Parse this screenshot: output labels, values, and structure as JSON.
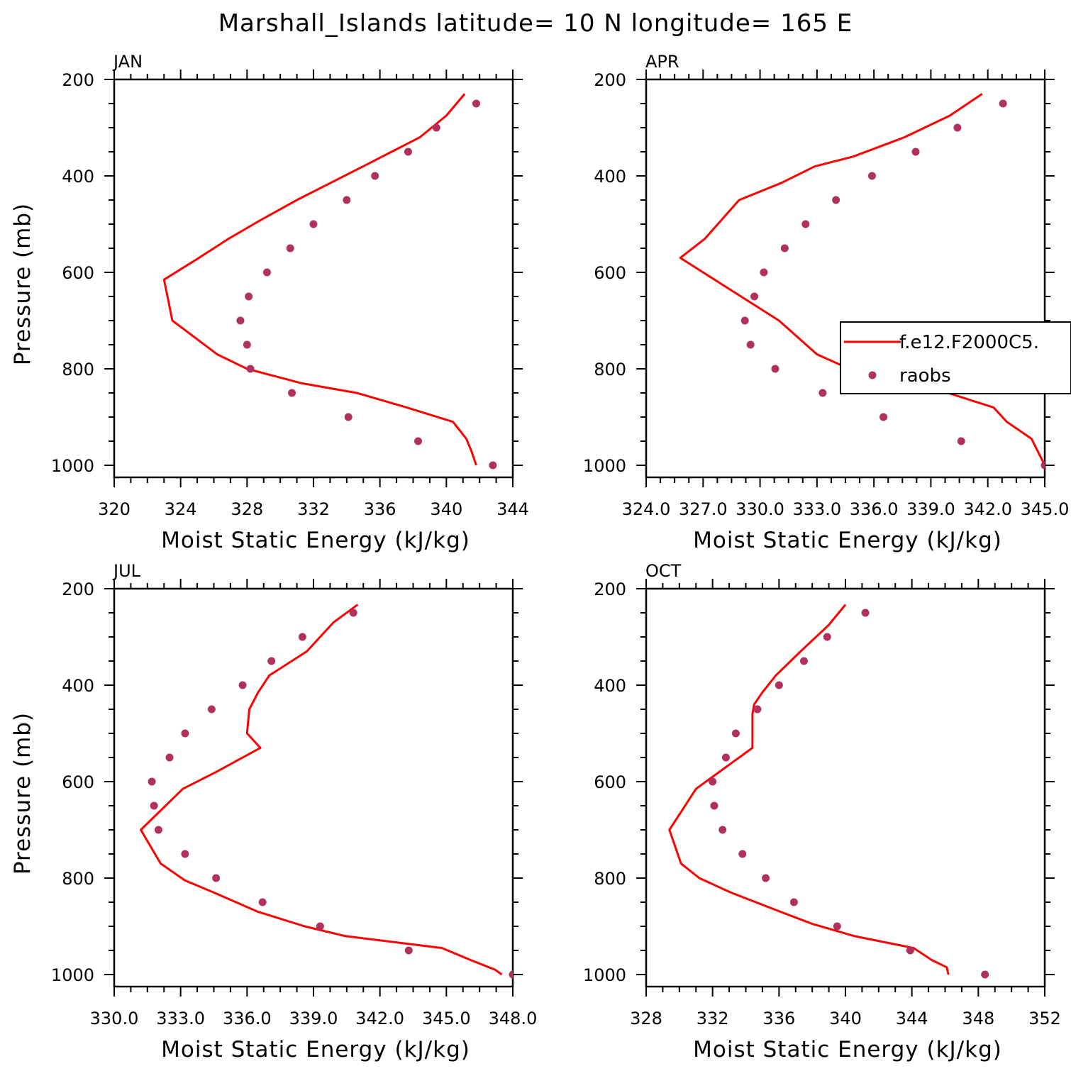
{
  "title": "Marshall_Islands   latitude= 10 N longitude= 165 E",
  "colors": {
    "model_line": "#ff0000",
    "obs_marker": "#b03060"
  },
  "chart_data": [
    {
      "type": "line",
      "panel_title": "JAN",
      "xlabel": "Moist Static Energy (kJ/kg)",
      "ylabel": "Pressure (mb)",
      "xlim": [
        320,
        344
      ],
      "ylim": [
        1025,
        200
      ],
      "xticks": [
        "320",
        "324",
        "328",
        "332",
        "336",
        "340",
        "344"
      ],
      "yticks": [
        "200",
        "400",
        "600",
        "800",
        "1000"
      ],
      "series": [
        {
          "name": "f.e12.F2000C5.",
          "kind": "line",
          "x": [
            341.1,
            340.0,
            338.4,
            336.7,
            335.0,
            333.0,
            331.0,
            328.9,
            326.9,
            325.1,
            323.0,
            323.5,
            326.2,
            328.0,
            331.3,
            334.6,
            337.6,
            340.4,
            341.2,
            341.5,
            341.8
          ],
          "y": [
            230,
            275,
            320,
            350,
            380,
            415,
            450,
            490,
            530,
            570,
            615,
            700,
            770,
            800,
            830,
            850,
            880,
            910,
            945,
            970,
            1000
          ]
        },
        {
          "name": "raobs",
          "kind": "scatter",
          "x": [
            341.8,
            339.4,
            337.7,
            335.7,
            334.0,
            332.0,
            330.6,
            329.2,
            328.1,
            327.6,
            328.0,
            328.2,
            330.7,
            334.1,
            338.3,
            342.8
          ],
          "y": [
            250,
            300,
            350,
            400,
            450,
            500,
            550,
            600,
            650,
            700,
            750,
            800,
            850,
            900,
            950,
            1000
          ]
        }
      ]
    },
    {
      "type": "line",
      "panel_title": "APR",
      "xlabel": "Moist Static Energy (kJ/kg)",
      "ylabel": "",
      "xlim": [
        324.0,
        345.0
      ],
      "ylim": [
        1025,
        200
      ],
      "xticks": [
        "324.0",
        "327.0",
        "330.0",
        "333.0",
        "336.0",
        "339.0",
        "342.0",
        "345.0"
      ],
      "yticks": [
        "200",
        "400",
        "600",
        "800",
        "1000"
      ],
      "series": [
        {
          "name": "f.e12.F2000C5.",
          "kind": "line",
          "x": [
            341.7,
            340.0,
            337.6,
            334.9,
            332.9,
            331.1,
            328.9,
            327.1,
            325.8,
            327.6,
            331.0,
            333.0,
            336.4,
            339.9,
            342.3,
            343.0,
            344.3,
            345.0
          ],
          "y": [
            230,
            275,
            320,
            360,
            380,
            415,
            450,
            530,
            570,
            615,
            700,
            770,
            830,
            850,
            880,
            910,
            945,
            1000
          ]
        },
        {
          "name": "raobs",
          "kind": "scatter",
          "x": [
            342.8,
            340.4,
            338.2,
            335.9,
            334.0,
            332.4,
            331.3,
            330.2,
            329.7,
            329.2,
            329.5,
            330.8,
            333.3,
            336.5,
            340.6,
            345.0
          ],
          "y": [
            250,
            300,
            350,
            400,
            450,
            500,
            550,
            600,
            650,
            700,
            750,
            800,
            850,
            900,
            950,
            1000
          ]
        }
      ],
      "legend": {
        "placement": "right-middle",
        "entries": [
          "f.e12.F2000C5.",
          "raobs"
        ]
      }
    },
    {
      "type": "line",
      "panel_title": "JUL",
      "xlabel": "Moist Static Energy (kJ/kg)",
      "ylabel": "Pressure (mb)",
      "xlim": [
        330.0,
        348.0
      ],
      "ylim": [
        1025,
        200
      ],
      "xticks": [
        "330.0",
        "333.0",
        "336.0",
        "339.0",
        "342.0",
        "345.0",
        "348.0"
      ],
      "yticks": [
        "200",
        "400",
        "600",
        "800",
        "1000"
      ],
      "series": [
        {
          "name": "f.e12.F2000C5.",
          "kind": "line",
          "x": [
            341.0,
            339.9,
            338.7,
            337.0,
            336.5,
            336.1,
            336.0,
            336.6,
            334.6,
            333.1,
            331.2,
            332.1,
            333.2,
            334.5,
            336.5,
            338.6,
            340.4,
            344.8,
            346.1,
            347.2,
            347.5
          ],
          "y": [
            233,
            270,
            330,
            380,
            415,
            450,
            500,
            530,
            580,
            615,
            700,
            770,
            805,
            830,
            870,
            900,
            920,
            945,
            970,
            990,
            1000
          ]
        },
        {
          "name": "raobs",
          "kind": "scatter",
          "x": [
            340.8,
            338.5,
            337.1,
            335.8,
            334.4,
            333.2,
            332.5,
            331.7,
            331.8,
            332.0,
            333.2,
            334.6,
            336.7,
            339.3,
            343.3,
            348.0
          ],
          "y": [
            250,
            300,
            350,
            400,
            450,
            500,
            550,
            600,
            650,
            700,
            750,
            800,
            850,
            900,
            950,
            1000
          ]
        }
      ]
    },
    {
      "type": "line",
      "panel_title": "OCT",
      "xlabel": "Moist Static Energy (kJ/kg)",
      "ylabel": "",
      "xlim": [
        328,
        352
      ],
      "ylim": [
        1025,
        200
      ],
      "xticks": [
        "328",
        "332",
        "336",
        "340",
        "344",
        "348",
        "352"
      ],
      "yticks": [
        "200",
        "400",
        "600",
        "800",
        "1000"
      ],
      "series": [
        {
          "name": "f.e12.F2000C5.",
          "kind": "line",
          "x": [
            340.0,
            339.0,
            337.3,
            335.8,
            335.0,
            334.5,
            334.4,
            334.4,
            333.0,
            331.0,
            329.4,
            330.1,
            331.2,
            333.1,
            336.1,
            338.0,
            340.5,
            344.1,
            345.2,
            346.1,
            346.2
          ],
          "y": [
            233,
            275,
            330,
            380,
            415,
            440,
            460,
            530,
            565,
            615,
            700,
            770,
            800,
            830,
            870,
            895,
            920,
            945,
            970,
            985,
            1000
          ]
        },
        {
          "name": "raobs",
          "kind": "scatter",
          "x": [
            341.2,
            338.9,
            337.5,
            336.0,
            334.7,
            333.4,
            332.8,
            332.0,
            332.1,
            332.6,
            333.8,
            335.2,
            336.9,
            339.5,
            343.9,
            348.4
          ],
          "y": [
            250,
            300,
            350,
            400,
            450,
            500,
            550,
            600,
            650,
            700,
            750,
            800,
            850,
            900,
            950,
            1000
          ]
        }
      ]
    }
  ]
}
